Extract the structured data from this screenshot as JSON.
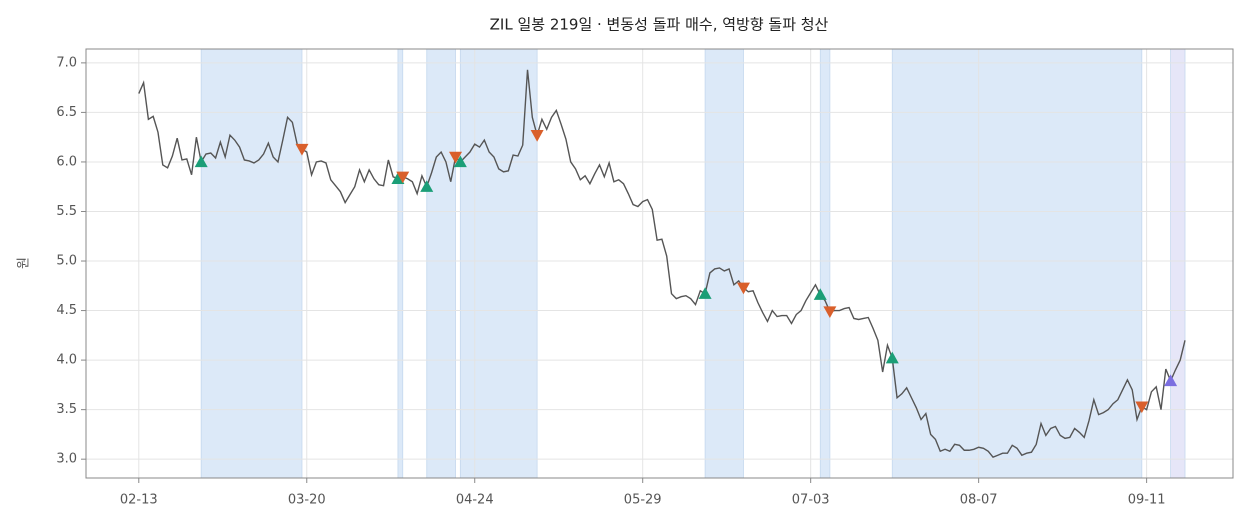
{
  "chart_data": {
    "type": "line",
    "title": "ZIL 일봉 219일 · 변동성 돌파 매수, 역방향 돌파 청산",
    "ylabel": "원",
    "x": [
      "02-13",
      "02-14",
      "02-15",
      "02-16",
      "02-17",
      "02-18",
      "02-19",
      "02-20",
      "02-21",
      "02-22",
      "02-23",
      "02-24",
      "02-25",
      "02-26",
      "02-27",
      "02-28",
      "03-01",
      "03-02",
      "03-03",
      "03-04",
      "03-05",
      "03-06",
      "03-07",
      "03-08",
      "03-09",
      "03-10",
      "03-11",
      "03-12",
      "03-13",
      "03-14",
      "03-15",
      "03-16",
      "03-17",
      "03-18",
      "03-19",
      "03-20",
      "03-21",
      "03-22",
      "03-23",
      "03-24",
      "03-25",
      "03-26",
      "03-27",
      "03-28",
      "03-29",
      "03-30",
      "03-31",
      "04-01",
      "04-02",
      "04-03",
      "04-04",
      "04-05",
      "04-06",
      "04-07",
      "04-08",
      "04-09",
      "04-10",
      "04-11",
      "04-12",
      "04-13",
      "04-14",
      "04-15",
      "04-16",
      "04-17",
      "04-18",
      "04-19",
      "04-20",
      "04-21",
      "04-22",
      "04-23",
      "04-24",
      "04-25",
      "04-26",
      "04-27",
      "04-28",
      "04-29",
      "04-30",
      "05-01",
      "05-02",
      "05-03",
      "05-04",
      "05-05",
      "05-06",
      "05-07",
      "05-08",
      "05-09",
      "05-10",
      "05-11",
      "05-12",
      "05-13",
      "05-14",
      "05-15",
      "05-16",
      "05-17",
      "05-18",
      "05-19",
      "05-20",
      "05-21",
      "05-22",
      "05-23",
      "05-24",
      "05-25",
      "05-26",
      "05-27",
      "05-28",
      "05-29",
      "05-30",
      "05-31",
      "06-01",
      "06-02",
      "06-03",
      "06-04",
      "06-05",
      "06-06",
      "06-07",
      "06-08",
      "06-09",
      "06-10",
      "06-11",
      "06-12",
      "06-13",
      "06-14",
      "06-15",
      "06-16",
      "06-17",
      "06-18",
      "06-19",
      "06-20",
      "06-21",
      "06-22",
      "06-23",
      "06-24",
      "06-25",
      "06-26",
      "06-27",
      "06-28",
      "06-29",
      "06-30",
      "07-01",
      "07-02",
      "07-03",
      "07-04",
      "07-05",
      "07-06",
      "07-07",
      "07-08",
      "07-09",
      "07-10",
      "07-11",
      "07-12",
      "07-13",
      "07-14",
      "07-15",
      "07-16",
      "07-17",
      "07-18",
      "07-19",
      "07-20",
      "07-21",
      "07-22",
      "07-23",
      "07-24",
      "07-25",
      "07-26",
      "07-27",
      "07-28",
      "07-29",
      "07-30",
      "07-31",
      "08-01",
      "08-02",
      "08-03",
      "08-04",
      "08-05",
      "08-06",
      "08-07",
      "08-08",
      "08-09",
      "08-10",
      "08-11",
      "08-12",
      "08-13",
      "08-14",
      "08-15",
      "08-16",
      "08-17",
      "08-18",
      "08-19",
      "08-20",
      "08-21",
      "08-22",
      "08-23",
      "08-24",
      "08-25",
      "08-26",
      "08-27",
      "08-28",
      "08-29",
      "08-30",
      "08-31",
      "09-01",
      "09-02",
      "09-03",
      "09-04",
      "09-05",
      "09-06",
      "09-07",
      "09-08",
      "09-09",
      "09-10",
      "09-11",
      "09-12",
      "09-13",
      "09-14",
      "09-15",
      "09-16",
      "09-17",
      "09-18",
      "09-19"
    ],
    "series": [
      {
        "color": "#555555",
        "values": [
          6.69,
          6.8,
          6.43,
          6.46,
          6.3,
          5.97,
          5.94,
          6.06,
          6.24,
          6.02,
          6.03,
          5.87,
          6.25,
          6.0,
          6.08,
          6.09,
          6.04,
          6.2,
          6.05,
          6.27,
          6.22,
          6.15,
          6.02,
          6.01,
          5.99,
          6.02,
          6.08,
          6.19,
          6.05,
          6.0,
          6.22,
          6.45,
          6.4,
          6.18,
          6.13,
          6.1,
          5.87,
          6.0,
          6.01,
          5.99,
          5.82,
          5.76,
          5.7,
          5.59,
          5.67,
          5.75,
          5.92,
          5.8,
          5.92,
          5.83,
          5.77,
          5.76,
          6.02,
          5.85,
          5.83,
          5.85,
          5.83,
          5.8,
          5.68,
          5.86,
          5.75,
          5.89,
          6.05,
          6.1,
          6.0,
          5.8,
          6.05,
          6.0,
          6.05,
          6.1,
          6.18,
          6.15,
          6.22,
          6.1,
          6.05,
          5.93,
          5.9,
          5.91,
          6.07,
          6.06,
          6.17,
          6.93,
          6.45,
          6.27,
          6.43,
          6.33,
          6.45,
          6.52,
          6.38,
          6.23,
          6.0,
          5.93,
          5.82,
          5.86,
          5.78,
          5.88,
          5.97,
          5.85,
          5.99,
          5.8,
          5.82,
          5.78,
          5.68,
          5.57,
          5.55,
          5.6,
          5.62,
          5.52,
          5.21,
          5.22,
          5.05,
          4.67,
          4.62,
          4.64,
          4.65,
          4.62,
          4.56,
          4.7,
          4.67,
          4.88,
          4.92,
          4.93,
          4.9,
          4.92,
          4.76,
          4.8,
          4.73,
          4.69,
          4.7,
          4.58,
          4.48,
          4.39,
          4.5,
          4.44,
          4.45,
          4.45,
          4.37,
          4.46,
          4.5,
          4.6,
          4.68,
          4.76,
          4.66,
          4.6,
          4.49,
          4.5,
          4.5,
          4.52,
          4.53,
          4.42,
          4.41,
          4.42,
          4.43,
          4.32,
          4.2,
          3.88,
          4.15,
          4.02,
          3.62,
          3.66,
          3.72,
          3.62,
          3.52,
          3.4,
          3.46,
          3.25,
          3.2,
          3.08,
          3.1,
          3.08,
          3.15,
          3.14,
          3.09,
          3.09,
          3.1,
          3.12,
          3.11,
          3.08,
          3.02,
          3.04,
          3.06,
          3.06,
          3.14,
          3.11,
          3.04,
          3.06,
          3.07,
          3.15,
          3.36,
          3.24,
          3.31,
          3.33,
          3.24,
          3.21,
          3.22,
          3.31,
          3.27,
          3.22,
          3.39,
          3.6,
          3.45,
          3.47,
          3.5,
          3.56,
          3.6,
          3.7,
          3.8,
          3.7,
          3.4,
          3.53,
          3.5,
          3.68,
          3.73,
          3.5,
          3.91,
          3.79,
          3.9,
          4.0,
          4.2
        ]
      }
    ],
    "markers": [
      {
        "shape": "up",
        "color": "#1b9e77",
        "x": [
          "02-26",
          "04-08",
          "04-14",
          "04-21",
          "06-11",
          "07-05",
          "07-20"
        ],
        "values": [
          6.0,
          5.83,
          5.75,
          6.0,
          4.67,
          4.66,
          4.02
        ]
      },
      {
        "shape": "down",
        "color": "#d95f2b",
        "x": [
          "03-19",
          "04-09",
          "04-20",
          "05-07",
          "06-19",
          "07-07",
          "09-10"
        ],
        "values": [
          6.13,
          5.85,
          6.05,
          6.27,
          4.73,
          4.49,
          3.53
        ]
      },
      {
        "shape": "up",
        "color": "#7b6ee0",
        "x": [
          "09-16"
        ],
        "values": [
          3.79
        ]
      }
    ],
    "spans": [
      {
        "start": "02-26",
        "end": "03-19",
        "color": "#dce9f8"
      },
      {
        "start": "04-08",
        "end": "04-09",
        "color": "#dce9f8"
      },
      {
        "start": "04-14",
        "end": "04-20",
        "color": "#dce9f8"
      },
      {
        "start": "04-21",
        "end": "05-07",
        "color": "#dce9f8"
      },
      {
        "start": "06-11",
        "end": "06-19",
        "color": "#dce9f8"
      },
      {
        "start": "07-05",
        "end": "07-07",
        "color": "#dce9f8"
      },
      {
        "start": "07-20",
        "end": "09-10",
        "color": "#dce9f8"
      },
      {
        "start": "09-16",
        "end": "09-19",
        "color": "#e6e6f8"
      }
    ],
    "xlim": [
      "02-02",
      "09-29"
    ],
    "xticks": [
      "02-13",
      "03-20",
      "04-24",
      "05-29",
      "07-03",
      "08-07",
      "09-11"
    ],
    "ylim": [
      2.81,
      7.14
    ],
    "yticks": [
      {
        "value": 3,
        "label": "3.0"
      },
      3.5,
      {
        "value": 4,
        "label": "4.0"
      },
      4.5,
      {
        "value": 5,
        "label": "5.0"
      },
      5.5,
      {
        "value": 6,
        "label": "6.0"
      },
      6.5,
      {
        "value": 7,
        "label": "7.0"
      }
    ],
    "grid": true
  }
}
